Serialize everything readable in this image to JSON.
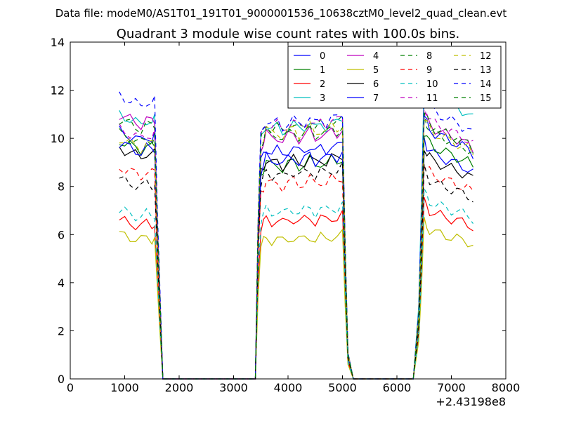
{
  "suptitle": "Data file: modeM0/AS1T01_191T01_9000001536_10638cztM0_level2_quad_clean.evt",
  "chart_data": {
    "type": "line",
    "title": "Quadrant 3 module wise count rates with 100.0s bins.",
    "xlabel": "",
    "ylabel": "",
    "xlim": [
      0,
      8000
    ],
    "ylim": [
      0,
      14
    ],
    "x_offset_label": "+2.43198e8",
    "x_ticks": [
      0,
      1000,
      2000,
      3000,
      4000,
      5000,
      6000,
      7000,
      8000
    ],
    "x_tick_labels": [
      "0",
      "1000",
      "2000",
      "3000",
      "4000",
      "5000",
      "6000",
      "7000",
      "8000"
    ],
    "y_ticks": [
      0,
      2,
      4,
      6,
      8,
      10,
      12,
      14
    ],
    "y_tick_labels": [
      "0",
      "2",
      "4",
      "6",
      "8",
      "10",
      "12",
      "14"
    ],
    "grid": false,
    "legend_position": "top-right",
    "legend_columns": 4,
    "series": [
      {
        "name": "0",
        "color": "#0000ff",
        "dash": "solid",
        "level": [
          10.3,
          9.8,
          9.5
        ]
      },
      {
        "name": "1",
        "color": "#008000",
        "dash": "solid",
        "level": [
          9.9,
          9.2,
          9.8
        ]
      },
      {
        "name": "2",
        "color": "#ff0000",
        "dash": "solid",
        "level": [
          6.6,
          6.8,
          7.0
        ]
      },
      {
        "name": "3",
        "color": "#00bfbf",
        "dash": "solid",
        "level": [
          11.0,
          10.8,
          12.0
        ]
      },
      {
        "name": "4",
        "color": "#bf00bf",
        "dash": "solid",
        "level": [
          11.0,
          10.4,
          10.6
        ]
      },
      {
        "name": "5",
        "color": "#bfbf00",
        "dash": "solid",
        "level": [
          6.0,
          6.0,
          6.2
        ]
      },
      {
        "name": "6",
        "color": "#000000",
        "dash": "solid",
        "level": [
          9.6,
          9.3,
          9.2
        ]
      },
      {
        "name": "7",
        "color": "#0000ff",
        "dash": "solid",
        "level": [
          9.8,
          9.4,
          10.4
        ]
      },
      {
        "name": "8",
        "color": "#008000",
        "dash": "dashed",
        "level": [
          10.2,
          10.8,
          10.4
        ]
      },
      {
        "name": "9",
        "color": "#ff0000",
        "dash": "dashed",
        "level": [
          8.8,
          8.4,
          8.6
        ]
      },
      {
        "name": "10",
        "color": "#00bfbf",
        "dash": "dashed",
        "level": [
          7.0,
          7.2,
          7.4
        ]
      },
      {
        "name": "11",
        "color": "#bf00bf",
        "dash": "dashed",
        "level": [
          10.4,
          10.9,
          10.8
        ]
      },
      {
        "name": "12",
        "color": "#bfbf00",
        "dash": "dashed",
        "level": [
          10.0,
          10.6,
          10.4
        ]
      },
      {
        "name": "13",
        "color": "#000000",
        "dash": "dashed",
        "level": [
          8.3,
          8.8,
          8.3
        ]
      },
      {
        "name": "14",
        "color": "#0000ff",
        "dash": "dashed",
        "level": [
          11.8,
          11.0,
          11.3
        ]
      },
      {
        "name": "15",
        "color": "#008000",
        "dash": "dashed",
        "level": [
          10.8,
          10.5,
          10.6
        ]
      }
    ],
    "time_profile": {
      "x": [
        900,
        1000,
        1100,
        1200,
        1300,
        1400,
        1500,
        1550,
        1600,
        1650,
        1700,
        1750,
        1800,
        2000,
        2500,
        3000,
        3400,
        3450,
        3500,
        3550,
        3600,
        3700,
        3800,
        3900,
        4000,
        4100,
        4200,
        4300,
        4400,
        4500,
        4600,
        4700,
        4800,
        4900,
        5000,
        5050,
        5100,
        5150,
        5200,
        5300,
        5600,
        6000,
        6300,
        6400,
        6450,
        6500,
        6550,
        6600,
        6700,
        6800,
        6900,
        7000,
        7100,
        7200,
        7300,
        7400
      ],
      "factor": [
        1.0,
        0.99,
        0.98,
        0.97,
        0.96,
        0.98,
        0.97,
        0.98,
        0.6,
        0.3,
        0.0,
        0.0,
        0.0,
        0.0,
        0.0,
        0.0,
        0.0,
        0.6,
        0.92,
        0.95,
        0.98,
        0.96,
        0.97,
        0.95,
        0.97,
        0.98,
        0.96,
        0.97,
        0.99,
        0.96,
        0.98,
        0.97,
        0.99,
        0.98,
        1.0,
        0.5,
        0.1,
        0.05,
        0.0,
        0.0,
        0.0,
        0.0,
        0.0,
        0.25,
        0.6,
        1.05,
        1.02,
        1.0,
        0.98,
        0.97,
        0.96,
        0.95,
        0.94,
        0.93,
        0.92,
        0.9
      ],
      "segment": [
        0,
        0,
        0,
        0,
        0,
        0,
        0,
        0,
        0,
        0,
        0,
        0,
        0,
        0,
        0,
        0,
        1,
        1,
        1,
        1,
        1,
        1,
        1,
        1,
        1,
        1,
        1,
        1,
        1,
        1,
        1,
        1,
        1,
        1,
        1,
        1,
        1,
        1,
        1,
        1,
        1,
        2,
        2,
        2,
        2,
        2,
        2,
        2,
        2,
        2,
        2,
        2,
        2,
        2,
        2,
        2
      ]
    }
  }
}
